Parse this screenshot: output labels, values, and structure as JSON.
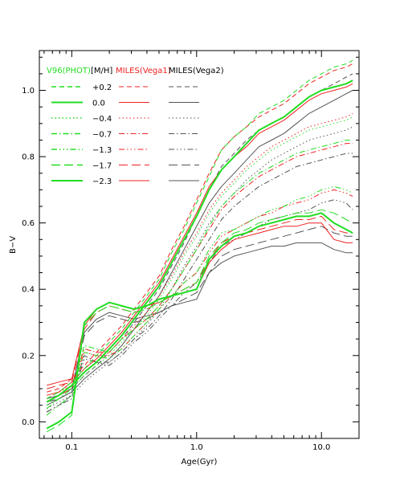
{
  "chart_data": {
    "type": "line",
    "title": "",
    "xlabel": "Age(Gyr)",
    "ylabel": "B−V",
    "xscale": "log",
    "xlim": [
      0.055,
      20
    ],
    "ylim": [
      -0.05,
      1.12
    ],
    "grid": false,
    "x_ticks": [
      {
        "value": 0.1,
        "label": "0.1"
      },
      {
        "value": 1.0,
        "label": "1.0"
      },
      {
        "value": 10.0,
        "label": "10.0"
      }
    ],
    "y_ticks": [
      {
        "value": 0.0,
        "label": "0.0"
      },
      {
        "value": 0.2,
        "label": "0.2"
      },
      {
        "value": 0.4,
        "label": "0.4"
      },
      {
        "value": 0.6,
        "label": "0.6"
      },
      {
        "value": 0.8,
        "label": "0.8"
      },
      {
        "value": 1.0,
        "label": "1.0"
      }
    ],
    "legend": {
      "position": "top-left",
      "headers": [
        {
          "text": "V96(PHOT)",
          "color": "#22dd22"
        },
        {
          "text": "[M/H]",
          "color": "#000000"
        },
        {
          "text": "MILES(Vega1)",
          "color": "#ee2222"
        },
        {
          "text": "MILES(Vega2)",
          "color": "#000000"
        }
      ],
      "metallicities": [
        "+0.2",
        "0.0",
        "−0.4",
        "−0.7",
        "−1.3",
        "−1.7",
        "−2.3"
      ]
    },
    "model_colors": {
      "V96(PHOT)": "#22dd22",
      "MILES(Vega1)": "#ee2222",
      "MILES(Vega2)": "#555555"
    },
    "metallicity_dash": {
      "+0.2": "6,4",
      "0.0": "",
      "−0.4": "1.5,3",
      "−0.7": "7,3,1.5,3",
      "−1.3": "7,3,1.5,3,1.5,3,1.5,3",
      "−1.7": "11,5",
      "−2.3": ""
    },
    "metallicity_width": {
      "0.0": 2,
      "−2.3": 2
    },
    "x": [
      0.063,
      0.079,
      0.1,
      0.126,
      0.158,
      0.2,
      0.251,
      0.316,
      0.398,
      0.501,
      0.631,
      0.794,
      1.0,
      1.26,
      1.58,
      2.0,
      2.51,
      3.16,
      3.98,
      5.01,
      6.31,
      7.94,
      10.0,
      12.6,
      15.8,
      17.8
    ],
    "series": [
      {
        "name": "V96(PHOT) +0.2",
        "model": "V96(PHOT)",
        "metallicity": "+0.2",
        "values": [
          0.07,
          0.09,
          0.12,
          0.16,
          0.2,
          0.24,
          0.28,
          0.33,
          0.38,
          0.43,
          0.51,
          0.58,
          0.66,
          0.74,
          0.82,
          0.86,
          0.89,
          0.93,
          0.95,
          0.97,
          1.0,
          1.03,
          1.05,
          1.07,
          1.08,
          1.09
        ]
      },
      {
        "name": "V96(PHOT) 0.0",
        "model": "V96(PHOT)",
        "metallicity": "0.0",
        "values": [
          0.06,
          0.08,
          0.11,
          0.15,
          0.18,
          0.22,
          0.26,
          0.31,
          0.36,
          0.41,
          0.48,
          0.55,
          0.62,
          0.7,
          0.76,
          0.8,
          0.84,
          0.88,
          0.9,
          0.92,
          0.95,
          0.98,
          1.0,
          1.01,
          1.02,
          1.03
        ]
      },
      {
        "name": "V96(PHOT) -0.4",
        "model": "V96(PHOT)",
        "metallicity": "−0.4",
        "values": [
          0.05,
          0.07,
          0.1,
          0.14,
          0.17,
          0.2,
          0.24,
          0.28,
          0.32,
          0.37,
          0.43,
          0.5,
          0.56,
          0.63,
          0.68,
          0.72,
          0.76,
          0.79,
          0.82,
          0.84,
          0.86,
          0.88,
          0.89,
          0.9,
          0.91,
          0.92
        ]
      },
      {
        "name": "V96(PHOT) -0.7",
        "model": "V96(PHOT)",
        "metallicity": "−0.7",
        "values": [
          0.04,
          0.07,
          0.1,
          0.23,
          0.22,
          0.21,
          0.25,
          0.28,
          0.31,
          0.35,
          0.4,
          0.46,
          0.52,
          0.59,
          0.65,
          0.69,
          0.72,
          0.75,
          0.77,
          0.79,
          0.81,
          0.82,
          0.83,
          0.84,
          0.85,
          0.85
        ]
      },
      {
        "name": "V96(PHOT) -1.3",
        "model": "V96(PHOT)",
        "metallicity": "−1.3",
        "values": [
          0.02,
          0.05,
          0.08,
          0.21,
          0.2,
          0.19,
          0.22,
          0.26,
          0.3,
          0.34,
          0.38,
          0.42,
          0.45,
          0.52,
          0.57,
          0.58,
          0.6,
          0.62,
          0.64,
          0.65,
          0.67,
          0.68,
          0.7,
          0.71,
          0.7,
          0.69
        ]
      },
      {
        "name": "V96(PHOT) -1.7",
        "model": "V96(PHOT)",
        "metallicity": "−1.7",
        "values": [
          -0.03,
          -0.01,
          0.02,
          0.29,
          0.33,
          0.35,
          0.34,
          0.33,
          0.34,
          0.36,
          0.38,
          0.4,
          0.42,
          0.5,
          0.54,
          0.57,
          0.58,
          0.6,
          0.61,
          0.62,
          0.63,
          0.63,
          0.64,
          0.63,
          0.61,
          0.6
        ]
      },
      {
        "name": "V96(PHOT) -2.3",
        "model": "V96(PHOT)",
        "metallicity": "−2.3",
        "values": [
          -0.02,
          0.0,
          0.03,
          0.3,
          0.34,
          0.36,
          0.35,
          0.34,
          0.35,
          0.37,
          0.38,
          0.39,
          0.4,
          0.49,
          0.53,
          0.56,
          0.57,
          0.59,
          0.6,
          0.61,
          0.62,
          0.62,
          0.63,
          0.6,
          0.58,
          0.57
        ]
      },
      {
        "name": "MILES(Vega1) +0.2",
        "model": "MILES(Vega1)",
        "metallicity": "+0.2",
        "values": [
          0.09,
          0.1,
          0.13,
          0.17,
          0.21,
          0.25,
          0.29,
          0.34,
          0.39,
          0.44,
          0.52,
          0.59,
          0.67,
          0.75,
          0.82,
          0.86,
          0.89,
          0.92,
          0.94,
          0.96,
          0.99,
          1.02,
          1.04,
          1.06,
          1.07,
          1.08
        ]
      },
      {
        "name": "MILES(Vega1) 0.0",
        "model": "MILES(Vega1)",
        "metallicity": "0.0",
        "values": [
          0.08,
          0.09,
          0.12,
          0.16,
          0.19,
          0.23,
          0.27,
          0.32,
          0.37,
          0.42,
          0.49,
          0.56,
          0.63,
          0.71,
          0.76,
          0.8,
          0.83,
          0.87,
          0.89,
          0.91,
          0.94,
          0.97,
          0.99,
          1.0,
          1.01,
          1.02
        ]
      },
      {
        "name": "MILES(Vega1) -0.4",
        "model": "MILES(Vega1)",
        "metallicity": "−0.4",
        "values": [
          0.07,
          0.09,
          0.11,
          0.15,
          0.18,
          0.21,
          0.25,
          0.29,
          0.33,
          0.38,
          0.44,
          0.51,
          0.57,
          0.64,
          0.69,
          0.73,
          0.77,
          0.8,
          0.83,
          0.85,
          0.87,
          0.89,
          0.9,
          0.91,
          0.92,
          0.93
        ]
      },
      {
        "name": "MILES(Vega1) -0.7",
        "model": "MILES(Vega1)",
        "metallicity": "−0.7",
        "values": [
          0.06,
          0.08,
          0.11,
          0.22,
          0.21,
          0.21,
          0.25,
          0.28,
          0.31,
          0.35,
          0.4,
          0.46,
          0.52,
          0.58,
          0.64,
          0.68,
          0.71,
          0.74,
          0.76,
          0.78,
          0.8,
          0.81,
          0.82,
          0.83,
          0.84,
          0.84
        ]
      },
      {
        "name": "MILES(Vega1) -1.3",
        "model": "MILES(Vega1)",
        "metallicity": "−1.3",
        "values": [
          0.06,
          0.08,
          0.1,
          0.21,
          0.2,
          0.2,
          0.22,
          0.26,
          0.3,
          0.34,
          0.38,
          0.42,
          0.45,
          0.51,
          0.56,
          0.58,
          0.6,
          0.62,
          0.63,
          0.65,
          0.66,
          0.67,
          0.69,
          0.7,
          0.69,
          0.68
        ]
      },
      {
        "name": "MILES(Vega1) -1.7",
        "model": "MILES(Vega1)",
        "metallicity": "−1.7",
        "values": [
          0.1,
          0.11,
          0.12,
          0.28,
          0.33,
          0.35,
          0.34,
          0.33,
          0.34,
          0.36,
          0.38,
          0.4,
          0.42,
          0.49,
          0.54,
          0.56,
          0.57,
          0.58,
          0.59,
          0.6,
          0.61,
          0.61,
          0.62,
          0.58,
          0.57,
          0.57
        ]
      },
      {
        "name": "MILES(Vega1) -2.3",
        "model": "MILES(Vega1)",
        "metallicity": "−2.3",
        "values": [
          0.11,
          0.12,
          0.13,
          0.29,
          0.34,
          0.36,
          0.35,
          0.34,
          0.35,
          0.36,
          0.38,
          0.39,
          0.4,
          0.48,
          0.52,
          0.55,
          0.56,
          0.57,
          0.58,
          0.59,
          0.59,
          0.6,
          0.6,
          0.55,
          0.54,
          0.54
        ]
      },
      {
        "name": "MILES(Vega2) +0.2",
        "model": "MILES(Vega2)",
        "metallicity": "+0.2",
        "values": [
          0.06,
          0.08,
          0.1,
          0.14,
          0.17,
          0.21,
          0.25,
          0.3,
          0.35,
          0.4,
          0.47,
          0.54,
          0.62,
          0.7,
          0.77,
          0.81,
          0.85,
          0.88,
          0.9,
          0.92,
          0.95,
          0.98,
          1.0,
          1.02,
          1.04,
          1.05
        ]
      },
      {
        "name": "MILES(Vega2) 0.0",
        "model": "MILES(Vega2)",
        "metallicity": "0.0",
        "values": [
          0.05,
          0.07,
          0.09,
          0.13,
          0.16,
          0.19,
          0.23,
          0.28,
          0.33,
          0.38,
          0.45,
          0.52,
          0.59,
          0.66,
          0.71,
          0.75,
          0.79,
          0.83,
          0.85,
          0.87,
          0.9,
          0.93,
          0.95,
          0.97,
          0.99,
          1.0
        ]
      },
      {
        "name": "MILES(Vega2) -0.4",
        "model": "MILES(Vega2)",
        "metallicity": "−0.4",
        "values": [
          0.04,
          0.06,
          0.08,
          0.12,
          0.15,
          0.18,
          0.21,
          0.25,
          0.29,
          0.34,
          0.4,
          0.47,
          0.53,
          0.6,
          0.65,
          0.69,
          0.73,
          0.76,
          0.79,
          0.81,
          0.83,
          0.85,
          0.86,
          0.87,
          0.88,
          0.89
        ]
      },
      {
        "name": "MILES(Vega2) -0.7",
        "model": "MILES(Vega2)",
        "metallicity": "−0.7",
        "values": [
          0.03,
          0.05,
          0.08,
          0.2,
          0.18,
          0.18,
          0.21,
          0.25,
          0.28,
          0.32,
          0.37,
          0.43,
          0.49,
          0.55,
          0.61,
          0.65,
          0.68,
          0.71,
          0.73,
          0.75,
          0.77,
          0.78,
          0.79,
          0.8,
          0.81,
          0.81
        ]
      },
      {
        "name": "MILES(Vega2) -1.3",
        "model": "MILES(Vega2)",
        "metallicity": "−1.3",
        "values": [
          0.03,
          0.05,
          0.07,
          0.19,
          0.18,
          0.17,
          0.2,
          0.24,
          0.27,
          0.31,
          0.35,
          0.39,
          0.42,
          0.48,
          0.53,
          0.55,
          0.57,
          0.59,
          0.61,
          0.62,
          0.63,
          0.64,
          0.66,
          0.67,
          0.66,
          0.64
        ]
      },
      {
        "name": "MILES(Vega2) -1.7",
        "model": "MILES(Vega2)",
        "metallicity": "−1.7",
        "values": [
          0.06,
          0.07,
          0.09,
          0.26,
          0.3,
          0.32,
          0.31,
          0.3,
          0.31,
          0.33,
          0.35,
          0.37,
          0.39,
          0.45,
          0.5,
          0.52,
          0.53,
          0.54,
          0.55,
          0.56,
          0.57,
          0.58,
          0.59,
          0.57,
          0.56,
          0.56
        ]
      },
      {
        "name": "MILES(Vega2) -2.3",
        "model": "MILES(Vega2)",
        "metallicity": "−2.3",
        "values": [
          0.07,
          0.08,
          0.1,
          0.27,
          0.31,
          0.33,
          0.32,
          0.31,
          0.32,
          0.33,
          0.35,
          0.36,
          0.37,
          0.45,
          0.48,
          0.5,
          0.51,
          0.52,
          0.53,
          0.53,
          0.54,
          0.54,
          0.54,
          0.52,
          0.51,
          0.51
        ]
      }
    ]
  }
}
